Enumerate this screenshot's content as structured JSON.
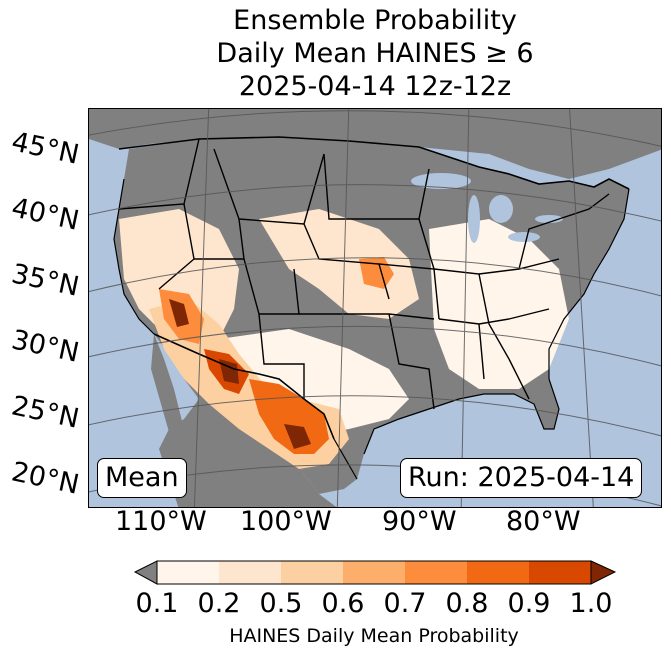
{
  "title": {
    "line1": "Ensemble Probability",
    "line2": "Daily Mean HAINES ≥ 6",
    "line3": "2025-04-14 12z-12z"
  },
  "map": {
    "lat_labels": [
      "45°N",
      "40°N",
      "35°N",
      "30°N",
      "25°N",
      "20°N"
    ],
    "lon_labels": [
      "110°W",
      "100°W",
      "90°W",
      "80°W"
    ],
    "mean_label": "Mean",
    "run_label": "Run: 2025-04-14",
    "colors": {
      "ocean": "#b0c4de",
      "land_below_threshold": "#808080",
      "borders": "#000000",
      "gridlines": "#555555"
    }
  },
  "colorbar": {
    "label": "HAINES Daily Mean Probability",
    "ticks": [
      "0.1",
      "0.2",
      "0.5",
      "0.6",
      "0.7",
      "0.8",
      "0.9",
      "1.0"
    ],
    "under_color": "#808080",
    "over_color": "#7f2704",
    "bin_colors": [
      "#fff5eb",
      "#fee6ce",
      "#fdd0a2",
      "#fdae6b",
      "#fd8d3c",
      "#f16913",
      "#d94801"
    ]
  }
}
